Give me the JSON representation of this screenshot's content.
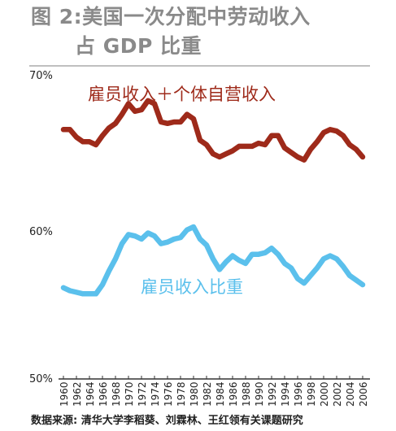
{
  "figure": {
    "title_line1": "图 2:美国一次分配中劳动收入",
    "title_line2": "占 GDP 比重",
    "source": "数据来源: 清华大学李稻葵、刘霖林、王红领有关课题研究"
  },
  "chart_data": [
    {
      "type": "line",
      "title": "雇员收入＋个体自营收入",
      "ylim": [
        50,
        70
      ],
      "y_ticks": [
        "70%",
        "60%"
      ],
      "x_ticks": [
        "1960",
        "1962",
        "1964",
        "1966",
        "1968",
        "1970",
        "1972",
        "1974",
        "1976",
        "1978",
        "1980",
        "1982",
        "1984",
        "1986",
        "1988",
        "1990",
        "1992",
        "1994",
        "1996",
        "1998",
        "2000",
        "2002",
        "2004",
        "2006"
      ],
      "grid": false,
      "series": [
        {
          "name": "雇员收入＋个体自营收入",
          "color": "#9e2a1a",
          "x": [
            1960,
            1961,
            1962,
            1963,
            1964,
            1965,
            1966,
            1967,
            1968,
            1969,
            1970,
            1971,
            1972,
            1973,
            1974,
            1975,
            1976,
            1977,
            1978,
            1979,
            1980,
            1981,
            1982,
            1983,
            1984,
            1985,
            1986,
            1987,
            1988,
            1989,
            1990,
            1991,
            1992,
            1993,
            1994,
            1995,
            1996,
            1997,
            1998,
            1999,
            2000,
            2001,
            2002,
            2003,
            2004,
            2005,
            2006
          ],
          "values": [
            66.4,
            66.4,
            65.9,
            65.6,
            65.6,
            65.4,
            66.0,
            66.5,
            66.8,
            67.4,
            68.1,
            67.6,
            67.7,
            68.3,
            68.1,
            66.9,
            66.8,
            66.9,
            66.9,
            67.4,
            67.1,
            65.7,
            65.4,
            64.8,
            64.6,
            64.8,
            65.0,
            65.3,
            65.3,
            65.3,
            65.5,
            65.4,
            66.0,
            66.0,
            65.2,
            64.9,
            64.6,
            64.4,
            65.1,
            65.6,
            66.2,
            66.4,
            66.3,
            66.0,
            65.4,
            65.1,
            64.6
          ]
        },
        {
          "name": "雇员收入比重",
          "color": "#5bc0ec",
          "x": [
            1960,
            1961,
            1962,
            1963,
            1964,
            1965,
            1966,
            1967,
            1968,
            1969,
            1970,
            1971,
            1972,
            1973,
            1974,
            1975,
            1976,
            1977,
            1978,
            1979,
            1980,
            1981,
            1982,
            1983,
            1984,
            1985,
            1986,
            1987,
            1988,
            1989,
            1990,
            1991,
            1992,
            1993,
            1994,
            1995,
            1996,
            1997,
            1998,
            1999,
            2000,
            2001,
            2002,
            2003,
            2004,
            2005,
            2006
          ],
          "values": [
            56.0,
            55.8,
            55.7,
            55.6,
            55.6,
            55.6,
            56.2,
            57.1,
            57.9,
            58.9,
            59.5,
            59.4,
            59.2,
            59.6,
            59.4,
            58.9,
            59.0,
            59.2,
            59.3,
            59.8,
            60.0,
            59.2,
            58.8,
            57.9,
            57.2,
            57.7,
            58.1,
            57.8,
            57.6,
            58.2,
            58.2,
            58.3,
            58.6,
            58.2,
            57.6,
            57.3,
            56.6,
            56.3,
            56.8,
            57.3,
            57.9,
            58.1,
            57.9,
            57.4,
            56.8,
            56.5,
            56.2
          ]
        }
      ]
    }
  ]
}
